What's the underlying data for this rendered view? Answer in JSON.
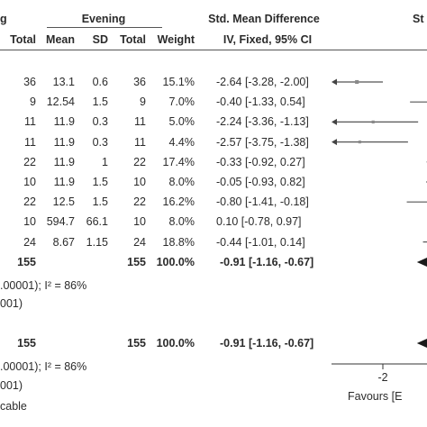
{
  "header": {
    "partial_left": "g",
    "evening_group": "Evening",
    "smd_group": "Std. Mean Difference",
    "partial_right": "St",
    "col_total1": "Total",
    "col_mean": "Mean",
    "col_sd": "SD",
    "col_total2": "Total",
    "col_weight": "Weight",
    "col_method": "IV, Fixed, 95% CI"
  },
  "rows": [
    {
      "total1": "36",
      "mean": "13.1",
      "sd": "0.6",
      "total2": "36",
      "weight": "15.1%",
      "ci": "-2.64 [-3.28, -2.00]"
    },
    {
      "total1": "9",
      "mean": "12.54",
      "sd": "1.5",
      "total2": "9",
      "weight": "7.0%",
      "ci": "-0.40 [-1.33, 0.54]"
    },
    {
      "total1": "11",
      "mean": "11.9",
      "sd": "0.3",
      "total2": "11",
      "weight": "5.0%",
      "ci": "-2.24 [-3.36, -1.13]"
    },
    {
      "total1": "11",
      "mean": "11.9",
      "sd": "0.3",
      "total2": "11",
      "weight": "4.4%",
      "ci": "-2.57 [-3.75, -1.38]"
    },
    {
      "total1": "22",
      "mean": "11.9",
      "sd": "1",
      "total2": "22",
      "weight": "17.4%",
      "ci": "-0.33 [-0.92, 0.27]"
    },
    {
      "total1": "10",
      "mean": "11.9",
      "sd": "1.5",
      "total2": "10",
      "weight": "8.0%",
      "ci": "-0.05 [-0.93, 0.82]"
    },
    {
      "total1": "22",
      "mean": "12.5",
      "sd": "1.5",
      "total2": "22",
      "weight": "16.2%",
      "ci": "-0.80 [-1.41, -0.18]"
    },
    {
      "total1": "10",
      "mean": "594.7",
      "sd": "66.1",
      "total2": "10",
      "weight": "8.0%",
      "ci": "0.10 [-0.78, 0.97]"
    },
    {
      "total1": "24",
      "mean": "8.67",
      "sd": "1.15",
      "total2": "24",
      "weight": "18.8%",
      "ci": "-0.44 [-1.01, 0.14]"
    }
  ],
  "subtotal": {
    "total1": "155",
    "total2": "155",
    "weight": "100.0%",
    "ci": "-0.91 [-1.16, -0.67]"
  },
  "subtotal_het": ".00001); I² = 86%",
  "subtotal_test": "001)",
  "overall": {
    "total1": "155",
    "total2": "155",
    "weight": "100.0%",
    "ci": "-0.91 [-1.16, -0.67]"
  },
  "overall_het": ".00001); I² = 86%",
  "overall_test": "001)",
  "footer_applicable": "cable",
  "axis": {
    "tick_label": "-2",
    "favours_label": "Favours [E"
  },
  "chart_data": {
    "type": "forest",
    "columns": [
      "Total",
      "Mean",
      "SD",
      "Total",
      "Weight",
      "IV, Fixed, 95% CI"
    ],
    "studies": [
      {
        "smd": -2.64,
        "lo": -3.28,
        "hi": -2.0,
        "weight": 15.1
      },
      {
        "smd": -0.4,
        "lo": -1.33,
        "hi": 0.54,
        "weight": 7.0
      },
      {
        "smd": -2.24,
        "lo": -3.36,
        "hi": -1.13,
        "weight": 5.0
      },
      {
        "smd": -2.57,
        "lo": -3.75,
        "hi": -1.38,
        "weight": 4.4
      },
      {
        "smd": -0.33,
        "lo": -0.92,
        "hi": 0.27,
        "weight": 17.4
      },
      {
        "smd": -0.05,
        "lo": -0.93,
        "hi": 0.82,
        "weight": 8.0
      },
      {
        "smd": -0.8,
        "lo": -1.41,
        "hi": -0.18,
        "weight": 16.2
      },
      {
        "smd": 0.1,
        "lo": -0.78,
        "hi": 0.97,
        "weight": 8.0
      },
      {
        "smd": -0.44,
        "lo": -1.01,
        "hi": 0.14,
        "weight": 18.8
      }
    ],
    "subtotal": {
      "smd": -0.91,
      "lo": -1.16,
      "hi": -0.67
    },
    "overall": {
      "smd": -0.91,
      "lo": -1.16,
      "hi": -0.67
    },
    "x_ticks": [
      -2
    ]
  }
}
